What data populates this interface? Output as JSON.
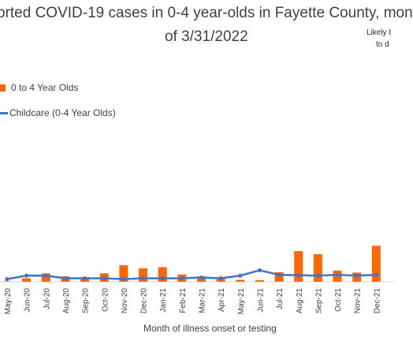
{
  "header": {
    "title_line1": "orted COVID-19 cases in 0-4 year-olds in Fayette County, mon",
    "title_line2": "of 3/31/2022",
    "note_line1": "Likely t",
    "note_line2": "to d"
  },
  "colors": {
    "bar": "#FF6600",
    "line": "#4472C4",
    "axis": "#D9D9D9",
    "text": "#404040"
  },
  "chart_data": {
    "type": "bar",
    "xlabel": "Month of illness onset or testing",
    "legend_placement": "top-left",
    "categories": [
      "May-20",
      "Jun-20",
      "Jul-20",
      "Aug-20",
      "Sep-20",
      "Oct-20",
      "Nov-20",
      "Dec-20",
      "Jan-21",
      "Feb-21",
      "Mar-21",
      "Apr-21",
      "May-21",
      "Jun-21",
      "Jul-21",
      "Aug-21",
      "Sep-21",
      "Oct-21",
      "Nov-21",
      "Dec-21"
    ],
    "series": [
      {
        "name": "0 to 4 Year Olds",
        "kind": "bar",
        "values": [
          1,
          9,
          22,
          14,
          12,
          22,
          43,
          35,
          38,
          19,
          14,
          10,
          5,
          4,
          25,
          80,
          72,
          29,
          24,
          94
        ]
      },
      {
        "name": "Childcare (0-4 Year Olds)",
        "kind": "line",
        "values": [
          7,
          16,
          16,
          9,
          9,
          9,
          7,
          9,
          9,
          9,
          11,
          9,
          16,
          30,
          18,
          17,
          16,
          18,
          16,
          18
        ]
      }
    ],
    "ylim": [
      0,
      300
    ]
  }
}
